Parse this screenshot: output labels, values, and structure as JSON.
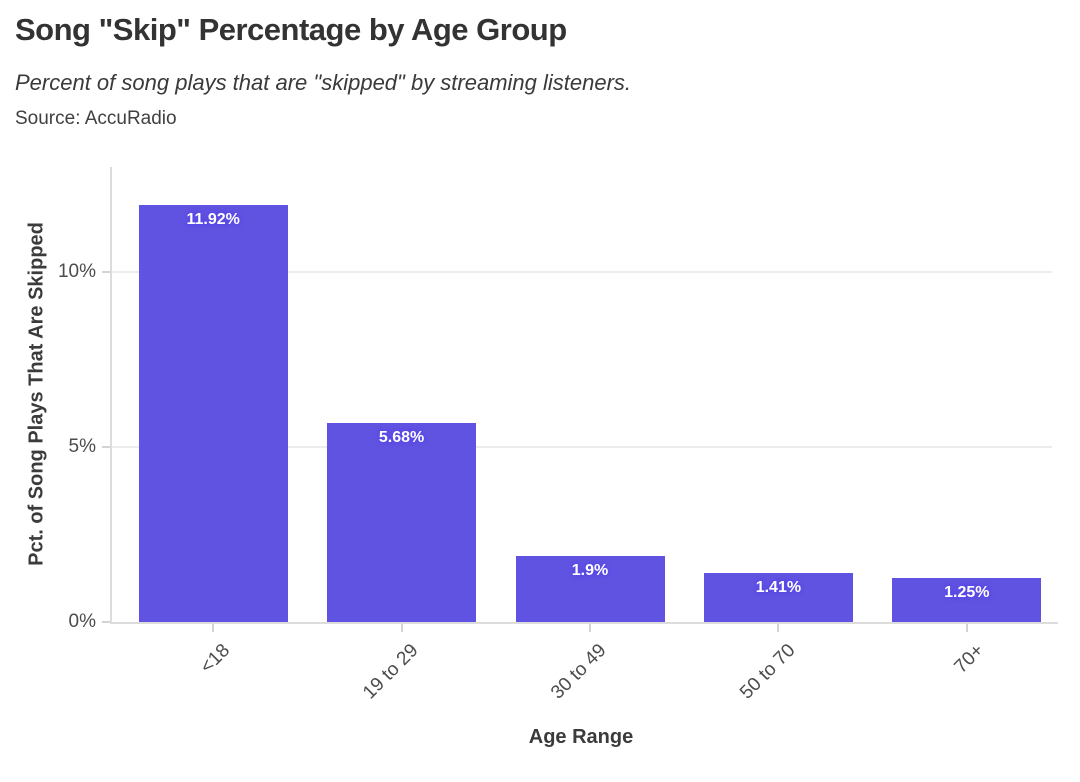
{
  "header": {
    "title": "Song \"Skip\" Percentage by Age Group",
    "subtitle": "Percent of song plays that are \"skipped\" by streaming listeners.",
    "source": "Source: AccuRadio"
  },
  "chart_data": {
    "type": "bar",
    "categories": [
      "<18",
      "19 to 29",
      "30 to 49",
      "50 to 70",
      "70+"
    ],
    "values": [
      11.92,
      5.68,
      1.9,
      1.41,
      1.25
    ],
    "bar_labels": [
      "11.92%",
      "5.68%",
      "1.9%",
      "1.41%",
      "1.25%"
    ],
    "title": "Song \"Skip\" Percentage by Age Group",
    "xlabel": "Age Range",
    "ylabel": "Pct. of Song Plays That Are Skipped",
    "yticks": [
      0,
      5,
      10
    ],
    "ytick_labels": [
      "0%",
      "5%",
      "10%"
    ],
    "ylim": [
      0,
      13
    ],
    "grid": "horizontal-only",
    "legend": "none",
    "bar_color": "#6153e1",
    "bar_label_color": "#ffffff",
    "bar_label_halo_color": "#5948e8"
  }
}
